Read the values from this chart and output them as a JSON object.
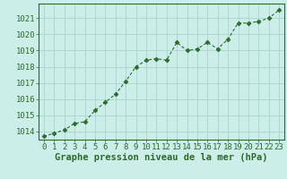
{
  "x": [
    0,
    1,
    2,
    3,
    4,
    5,
    6,
    7,
    8,
    9,
    10,
    11,
    12,
    13,
    14,
    15,
    16,
    17,
    18,
    19,
    20,
    21,
    22,
    23
  ],
  "y": [
    1013.7,
    1013.9,
    1014.1,
    1014.5,
    1014.6,
    1015.3,
    1015.8,
    1016.3,
    1017.1,
    1018.0,
    1018.4,
    1018.5,
    1018.4,
    1019.5,
    1019.0,
    1019.1,
    1019.5,
    1019.1,
    1019.7,
    1020.7,
    1020.7,
    1020.8,
    1021.0,
    1021.5
  ],
  "line_color": "#2d6a2d",
  "marker": "D",
  "marker_size": 2.5,
  "bg_color": "#cceee8",
  "grid_color": "#aad4ce",
  "xlabel": "Graphe pression niveau de la mer (hPa)",
  "xlabel_fontsize": 7.5,
  "xlabel_color": "#2d6a2d",
  "ylabel_ticks": [
    1014,
    1015,
    1016,
    1017,
    1018,
    1019,
    1020,
    1021
  ],
  "xlim": [
    -0.5,
    23.5
  ],
  "ylim": [
    1013.5,
    1021.9
  ],
  "tick_fontsize": 6.5,
  "tick_color": "#2d6a2d",
  "spine_color": "#2d6a2d"
}
